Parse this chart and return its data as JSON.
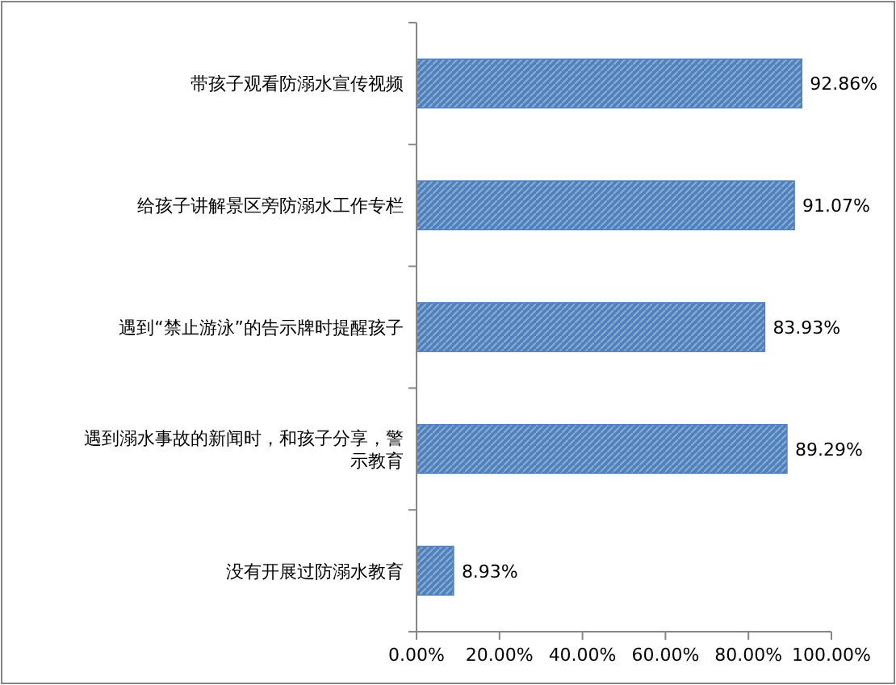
{
  "chart_data": {
    "type": "bar",
    "orientation": "horizontal",
    "categories": [
      "带孩子观看防溺水宣传视频",
      "给孩子讲解景区旁防溺水工作专栏",
      "遇到“禁止游泳”的告示牌时提醒孩子",
      "遇到溺水事故的新闻时，和孩子分享，警示教育",
      "没有开展过防溺水教育"
    ],
    "values": [
      92.86,
      91.07,
      83.93,
      89.29,
      8.93
    ],
    "value_labels": [
      "92.86%",
      "91.07%",
      "83.93%",
      "89.29%",
      "8.93%"
    ],
    "color": "#4f81bd",
    "xlim": [
      0,
      100
    ],
    "xticks": [
      {
        "value": 0,
        "label": "0.00%"
      },
      {
        "value": 20,
        "label": "20.00%"
      },
      {
        "value": 40,
        "label": "40.00%"
      },
      {
        "value": 60,
        "label": "60.00%"
      },
      {
        "value": 80,
        "label": "80.00%"
      },
      {
        "value": 100,
        "label": "100.00%"
      }
    ],
    "grid": false
  }
}
